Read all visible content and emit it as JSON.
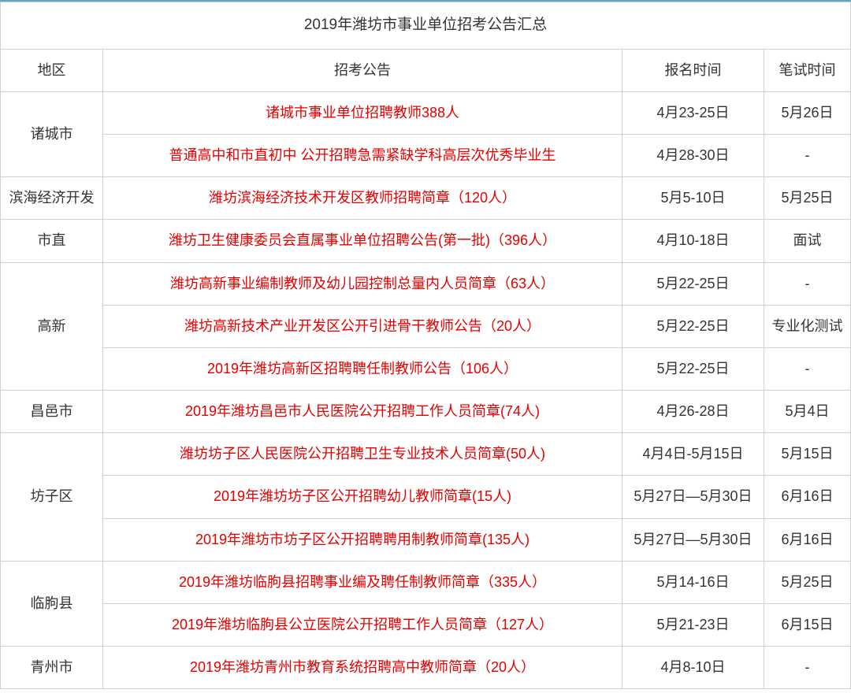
{
  "title": "2019年潍坊市事业单位招考公告汇总",
  "columns": {
    "region": "地区",
    "notice": "招考公告",
    "apply_time": "报名时间",
    "exam_time": "笔试时间"
  },
  "colors": {
    "top_border": "#5aa9bd",
    "cell_border": "#d0d0d0",
    "link": "#e60000",
    "text": "#333333",
    "background": "#ffffff"
  },
  "rows": [
    {
      "region": "诸城市",
      "rowspan": 2,
      "notice": "诸城市事业单位招聘教师388人",
      "apply_time": "4月23-25日",
      "exam_time": "5月26日"
    },
    {
      "region": "",
      "notice": "普通高中和市直初中 公开招聘急需紧缺学科高层次优秀毕业生",
      "apply_time": "4月28-30日",
      "exam_time": "-"
    },
    {
      "region": "滨海经济开发",
      "rowspan": 1,
      "notice": "潍坊滨海经济技术开发区教师招聘简章（120人）",
      "apply_time": "5月5-10日",
      "exam_time": "5月25日"
    },
    {
      "region": "市直",
      "rowspan": 1,
      "notice": "潍坊卫生健康委员会直属事业单位招聘公告(第一批)（396人）",
      "apply_time": "4月10-18日",
      "exam_time": "面试"
    },
    {
      "region": "高新",
      "rowspan": 3,
      "notice": "潍坊高新事业编制教师及幼儿园控制总量内人员简章（63人）",
      "apply_time": "5月22-25日",
      "exam_time": "-"
    },
    {
      "region": "",
      "notice": "潍坊高新技术产业开发区公开引进骨干教师公告（20人）",
      "apply_time": "5月22-25日",
      "exam_time": "专业化测试"
    },
    {
      "region": "",
      "notice": "2019年潍坊高新区招聘聘任制教师公告（106人）",
      "apply_time": "5月22-25日",
      "exam_time": "-"
    },
    {
      "region": "昌邑市",
      "rowspan": 1,
      "notice": "2019年潍坊昌邑市人民医院公开招聘工作人员简章(74人)",
      "apply_time": "4月26-28日",
      "exam_time": "5月4日"
    },
    {
      "region": "坊子区",
      "rowspan": 3,
      "notice": "潍坊坊子区人民医院公开招聘卫生专业技术人员简章(50人)",
      "apply_time": "4月4日-5月15日",
      "exam_time": "5月15日"
    },
    {
      "region": "",
      "notice": "2019年潍坊坊子区公开招聘幼儿教师简章(15人)",
      "apply_time": "5月27日—5月30日",
      "exam_time": "6月16日"
    },
    {
      "region": "",
      "notice": "2019年潍坊市坊子区公开招聘聘用制教师简章(135人)",
      "apply_time": "5月27日—5月30日",
      "exam_time": "6月16日"
    },
    {
      "region": "临朐县",
      "rowspan": 2,
      "notice": "2019年潍坊临朐县招聘事业编及聘任制教师简章（335人）",
      "apply_time": "5月14-16日",
      "exam_time": "5月25日"
    },
    {
      "region": "",
      "notice": "2019年潍坊临朐县公立医院公开招聘工作人员简章（127人）",
      "apply_time": "5月21-23日",
      "exam_time": "6月15日"
    },
    {
      "region": "青州市",
      "rowspan": 1,
      "notice": "2019年潍坊青州市教育系统招聘高中教师简章（20人）",
      "apply_time": "4月8-10日",
      "exam_time": "-"
    }
  ]
}
